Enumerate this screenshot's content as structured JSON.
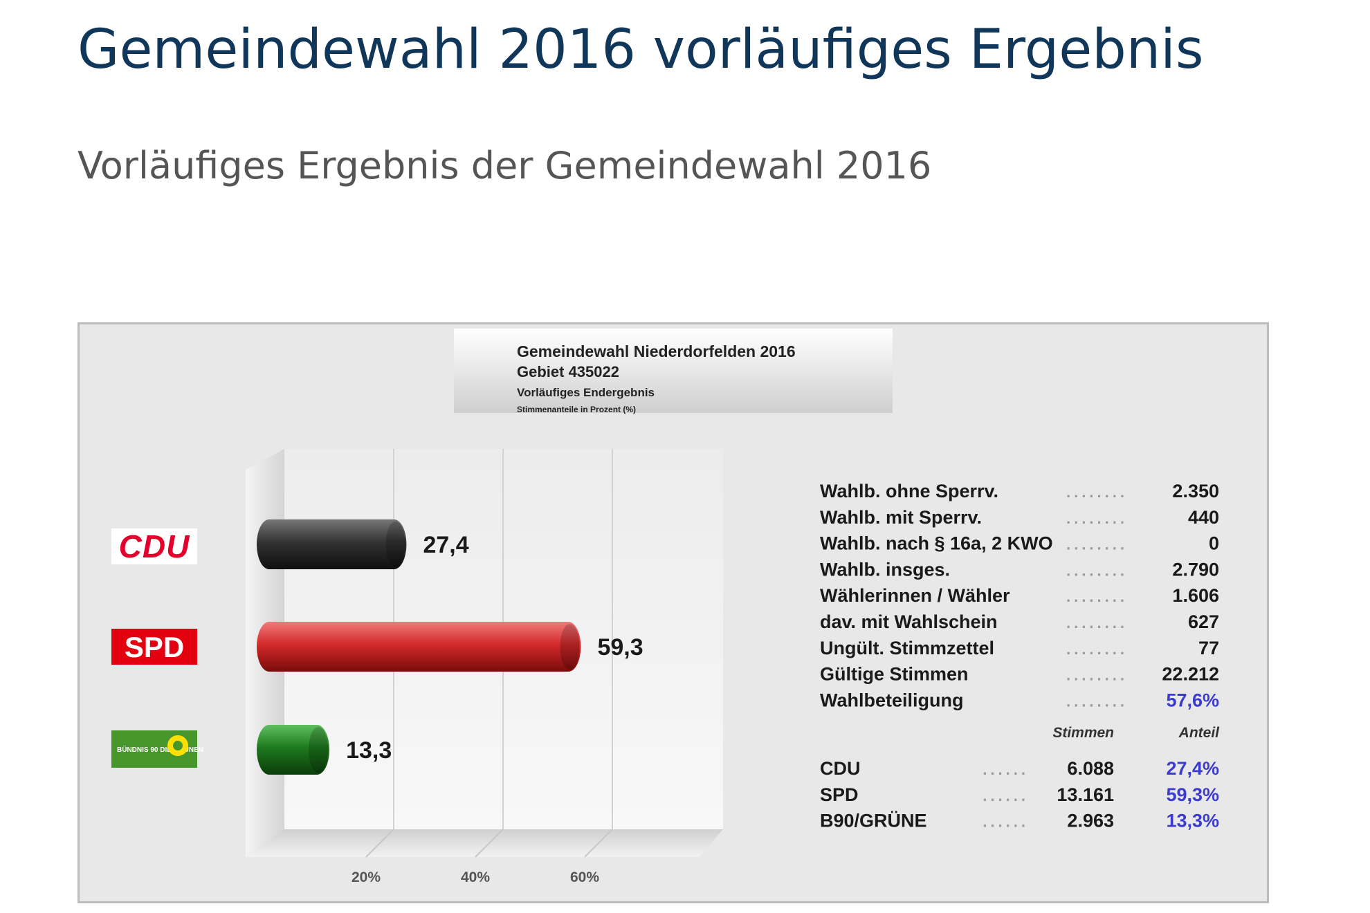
{
  "page": {
    "title": "Gemeindewahl 2016 vorläufiges Ergebnis",
    "subtitle": "Vorläufiges Ergebnis der Gemeindewahl 2016"
  },
  "chart_data": {
    "type": "bar",
    "orientation": "horizontal",
    "header": {
      "line1": "Gemeindewahl Niederdorfelden 2016",
      "line2": "Gebiet 435022",
      "line3": "Vorläufiges Endergebnis",
      "line4": "Stimmenanteile in Prozent (%)"
    },
    "categories": [
      "CDU",
      "SPD",
      "B90/GRÜNE"
    ],
    "logo_texts": [
      "CDU",
      "SPD",
      "BÜNDNIS 90 DIE GRÜNEN"
    ],
    "values": [
      27.4,
      59.3,
      13.3
    ],
    "value_labels": [
      "27,4",
      "59,3",
      "13,3"
    ],
    "colors": [
      "#333333",
      "#d42a2a",
      "#1e7a1e"
    ],
    "logo_colors": [
      "#e4002b",
      "#e3000f",
      "#46962b"
    ],
    "xlim": [
      0,
      80
    ],
    "xticks": [
      20,
      40,
      60
    ],
    "xtick_labels": [
      "20%",
      "40%",
      "60%"
    ],
    "grid": true,
    "stats": [
      {
        "label": "Wahlb. ohne Sperrv.",
        "value": "2.350"
      },
      {
        "label": "Wahlb. mit Sperrv.",
        "value": "440"
      },
      {
        "label": "Wahlb. nach § 16a, 2 KWO",
        "value": "0"
      },
      {
        "label": "Wahlb. insges.",
        "value": "2.790"
      },
      {
        "label": "Wählerinnen / Wähler",
        "value": "1.606"
      },
      {
        "label": "dav. mit Wahlschein",
        "value": "627"
      },
      {
        "label": "Ungült. Stimmzettel",
        "value": "77"
      },
      {
        "label": "Gültige Stimmen",
        "value": "22.212"
      },
      {
        "label": "Wahlbeteiligung",
        "value": "57,6%",
        "highlight": true
      }
    ],
    "results_header": {
      "votes": "Stimmen",
      "share": "Anteil"
    },
    "results": [
      {
        "party": "CDU",
        "votes": "6.088",
        "share": "27,4%"
      },
      {
        "party": "SPD",
        "votes": "13.161",
        "share": "59,3%"
      },
      {
        "party": "B90/GRÜNE",
        "votes": "2.963",
        "share": "13,3%"
      }
    ],
    "accent_color": "#3b3bd0"
  }
}
